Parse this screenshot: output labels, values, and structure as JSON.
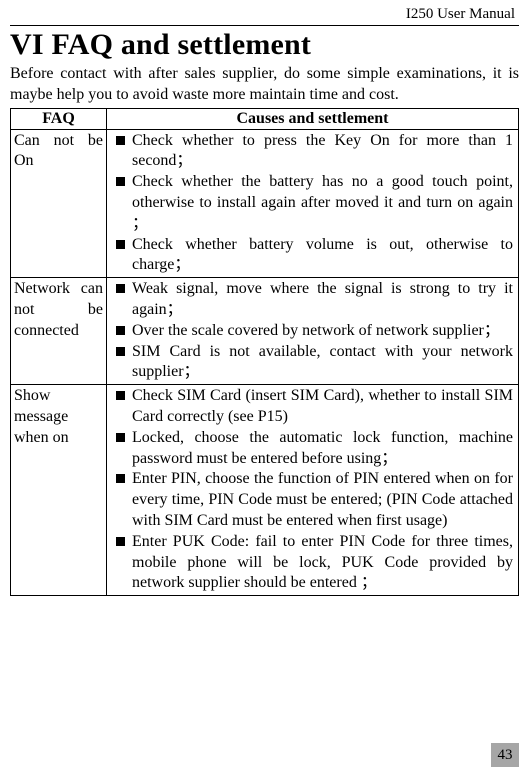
{
  "header": {
    "manual_label": "I250 User Manual"
  },
  "section": {
    "title": "VI  FAQ and settlement"
  },
  "intro": "Before contact with after sales supplier, do some simple examinations, it is maybe help you to avoid waste more maintain time and cost.",
  "table": {
    "head_left": "FAQ",
    "head_right": "Causes and settlement",
    "rows": [
      {
        "faq": "Can not be On",
        "items": [
          "Check whether to press the Key On for more than 1 second；",
          "Check whether the battery has no a good touch point, otherwise to install again after moved it and turn on again ；",
          "Check whether battery volume is out, otherwise to charge；"
        ]
      },
      {
        "faq": "Network can not be connected",
        "items": [
          "Weak signal, move where the signal is strong to try it again；",
          "Over the scale covered by network of network supplier；",
          "SIM Card is not available, contact with your network supplier；"
        ]
      },
      {
        "faq": "Show message when on",
        "items": [
          "Check SIM Card (insert SIM Card), whether to install SIM Card correctly (see P15)",
          "Locked, choose the automatic lock function, machine password must be entered before using；",
          "Enter PIN, choose the function of PIN entered when on for every time, PIN Code must be entered; (PIN Code attached with SIM Card must be entered when first usage)",
          "Enter PUK Code: fail to enter PIN Code for three times, mobile phone will be lock, PUK Code provided by network supplier should be entered ；"
        ]
      }
    ]
  },
  "page_number": "43"
}
